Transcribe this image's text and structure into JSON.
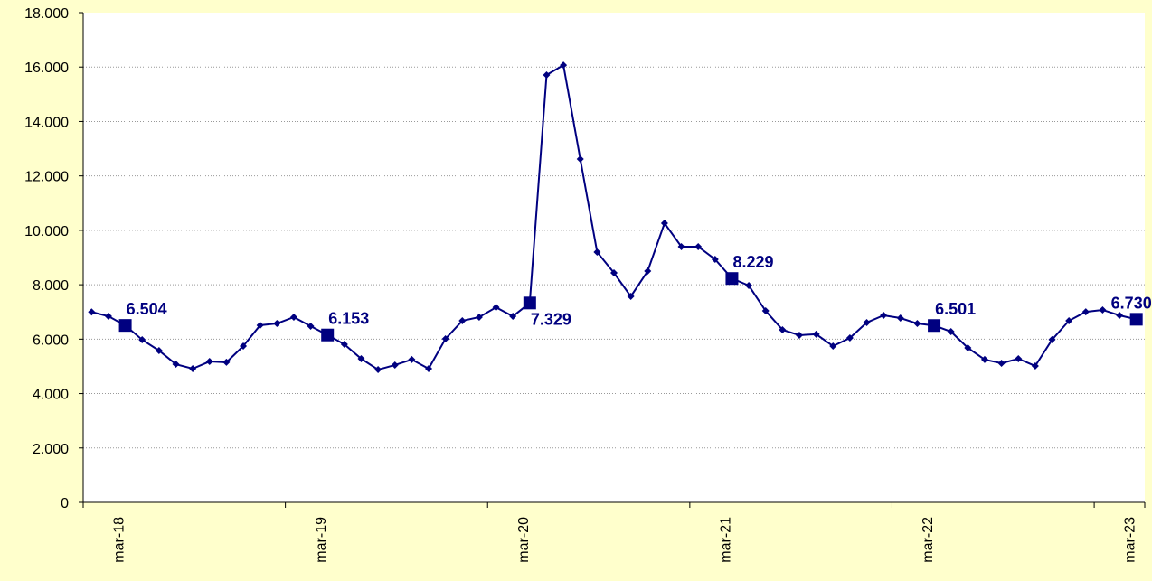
{
  "chart_data": {
    "type": "line",
    "categories": [
      null,
      null,
      "mar-18",
      null,
      null,
      null,
      null,
      null,
      null,
      null,
      null,
      null,
      null,
      null,
      "mar-19",
      null,
      null,
      null,
      null,
      null,
      null,
      null,
      null,
      null,
      null,
      null,
      "mar-20",
      null,
      null,
      null,
      null,
      null,
      null,
      null,
      null,
      null,
      null,
      null,
      "mar-21",
      null,
      null,
      null,
      null,
      null,
      null,
      null,
      null,
      null,
      null,
      null,
      "mar-22",
      null,
      null,
      null,
      null,
      null,
      null,
      null,
      null,
      null,
      null,
      null,
      "mar-23"
    ],
    "series": [
      {
        "color": "#000080",
        "values": [
          7000,
          6840,
          6504,
          5978,
          5580,
          5080,
          4915,
          5180,
          5150,
          5745,
          6510,
          6575,
          6810,
          6475,
          6153,
          5810,
          5280,
          4880,
          5050,
          5250,
          4915,
          6010,
          6675,
          6810,
          7170,
          6840,
          7329,
          15710,
          16070,
          12620,
          9200,
          8435,
          7570,
          8500,
          10260,
          9400,
          9400,
          8935,
          8229,
          7970,
          7040,
          6345,
          6145,
          6180,
          5745,
          6045,
          6610,
          6875,
          6775,
          6575,
          6501,
          6275,
          5680,
          5250,
          5115,
          5280,
          5015,
          5980,
          6675,
          7005,
          7075,
          6875,
          6730
        ],
        "value_labels": [
          null,
          null,
          "6.504",
          null,
          null,
          null,
          null,
          null,
          null,
          null,
          null,
          null,
          null,
          null,
          "6.153",
          null,
          null,
          null,
          null,
          null,
          null,
          null,
          null,
          null,
          null,
          null,
          "7.329",
          null,
          null,
          null,
          null,
          null,
          null,
          null,
          null,
          null,
          null,
          null,
          "8.229",
          null,
          null,
          null,
          null,
          null,
          null,
          null,
          null,
          null,
          null,
          null,
          "6.501",
          null,
          null,
          null,
          null,
          null,
          null,
          null,
          null,
          null,
          null,
          null,
          "6.730"
        ]
      }
    ],
    "ylim": [
      0,
      18000
    ],
    "yticks": [
      0,
      {
        "value": 2000,
        "label": "2.000"
      },
      {
        "value": 4000,
        "label": "4.000"
      },
      {
        "value": 6000,
        "label": "6.000"
      },
      {
        "value": 8000,
        "label": "8.000"
      },
      {
        "value": 10000,
        "label": "10.000"
      },
      {
        "value": 12000,
        "label": "12.000"
      },
      {
        "value": 14000,
        "label": "14.000"
      },
      {
        "value": 16000,
        "label": "16.000"
      },
      {
        "value": 18000,
        "label": "18.000"
      }
    ],
    "grid": true
  }
}
